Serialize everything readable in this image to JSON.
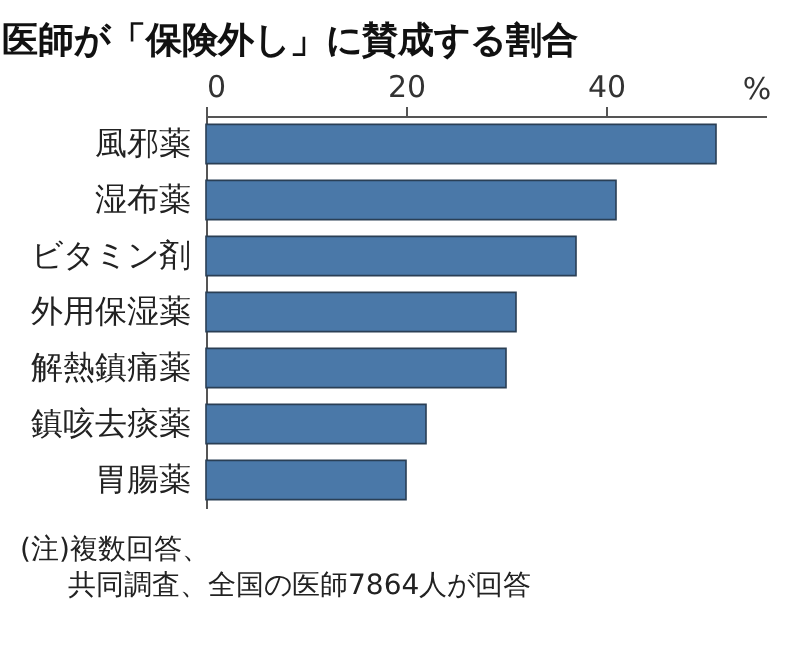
{
  "chart_data": {
    "type": "bar",
    "orientation": "horizontal",
    "title": "医師が「保険外し」に賛成する割合",
    "xlabel": "%",
    "categories": [
      "風邪薬",
      "湿布薬",
      "ビタミン剤",
      "外用保湿薬",
      "解熱鎮痛薬",
      "鎮咳去痰薬",
      "胃腸薬"
    ],
    "values": [
      51,
      41,
      37,
      31,
      30,
      22,
      20
    ],
    "color": "#4a78a8",
    "xlim": [
      0,
      56
    ],
    "xticks": [
      0,
      20,
      40
    ],
    "grid": false,
    "annotations": [
      "(注)複数回答、",
      "共同調査、全国の医師7864人が回答"
    ]
  }
}
